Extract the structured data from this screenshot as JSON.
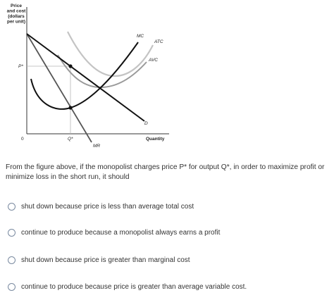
{
  "figure": {
    "y_axis_label_lines": [
      "Price",
      "and cost",
      "(dollars",
      "per unit)"
    ],
    "x_axis_label": "Quantity",
    "origin_label": "0",
    "price_tick_label": "P*",
    "quantity_tick_label": "Q*",
    "curve_labels": {
      "mc": "MC",
      "atc": "ATC",
      "avc": "AVC",
      "demand": "D",
      "mr": "MR"
    }
  },
  "question": {
    "text": "From the figure above, if the monopolist charges price P* for output Q*, in order to maximize profit or minimize loss in the short run, it should"
  },
  "options": [
    {
      "label": "shut down because price is less than average total cost"
    },
    {
      "label": "continue to produce because a monopolist always earns a profit"
    },
    {
      "label": "shut down because price is greater than marginal cost"
    },
    {
      "label": "continue to produce because price is greater than average variable cost."
    }
  ]
}
